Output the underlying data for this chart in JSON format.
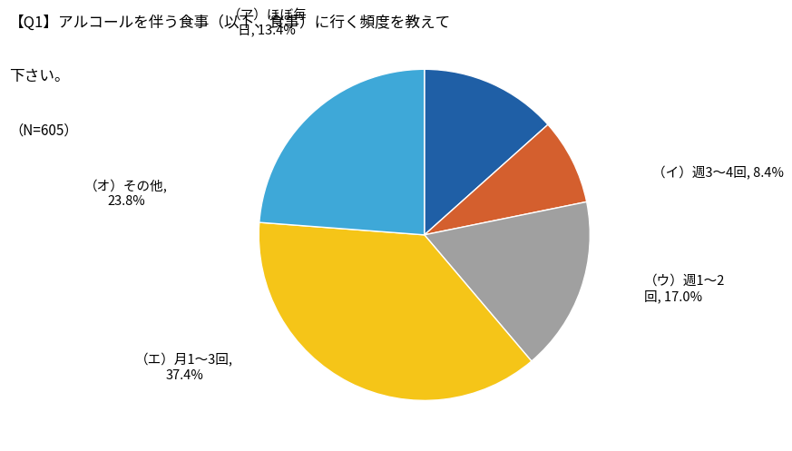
{
  "title_line1": "》Q1「アルコールを伴う食事（以下、食事）に行く頻度を教えて",
  "title_line2": "下さい。",
  "title_line3": "（N=605）",
  "sizes": [
    13.4,
    8.4,
    17.0,
    37.4,
    23.8
  ],
  "colors": [
    "#1f5fa6",
    "#d45f2e",
    "#a0a0a0",
    "#f5c518",
    "#3ea8d8"
  ],
  "startangle": 90,
  "background_color": "#ffffff",
  "label_a": "（ア）ほぼ毎\n日, 13.4%",
  "label_i": "（イ）週3〜4回, 8.4%",
  "label_u": "（ウ）週1〜2\n回, 17.0%",
  "label_e": "（エ）月1〜3回,\n37.4%",
  "label_o": "（オ）その他,\n23.8%"
}
